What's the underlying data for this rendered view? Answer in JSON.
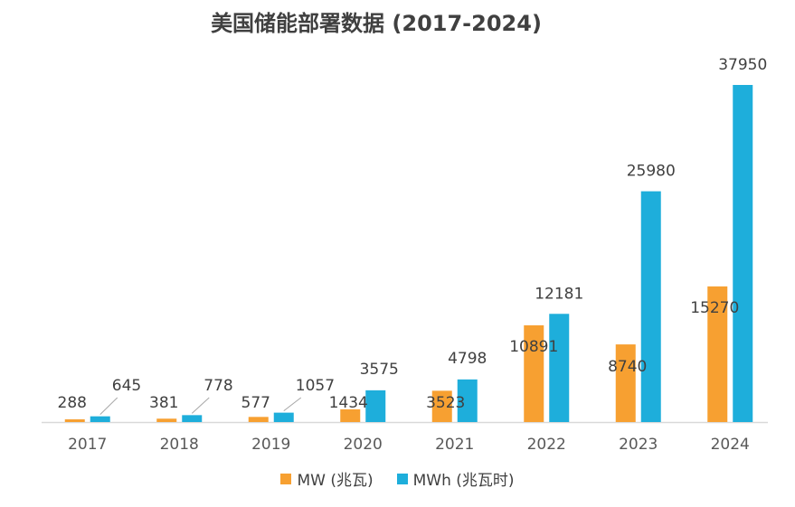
{
  "chart_data": {
    "type": "bar",
    "title": "美国储能部署数据 (2017-2024)",
    "categories": [
      "2017",
      "2018",
      "2019",
      "2020",
      "2021",
      "2022",
      "2023",
      "2024"
    ],
    "series": [
      {
        "name": "MW (兆瓦)",
        "color": "#F7A031",
        "values": [
          288,
          381,
          577,
          1434,
          3523,
          10891,
          8740,
          15270
        ]
      },
      {
        "name": "MWh (兆瓦时)",
        "color": "#1EAEDB",
        "values": [
          645,
          778,
          1057,
          3575,
          4798,
          12181,
          25980,
          37950
        ]
      }
    ],
    "xlabel": "",
    "ylabel": "",
    "ylim": [
      0,
      37950
    ],
    "legend": "bottom-center",
    "grid": false
  }
}
